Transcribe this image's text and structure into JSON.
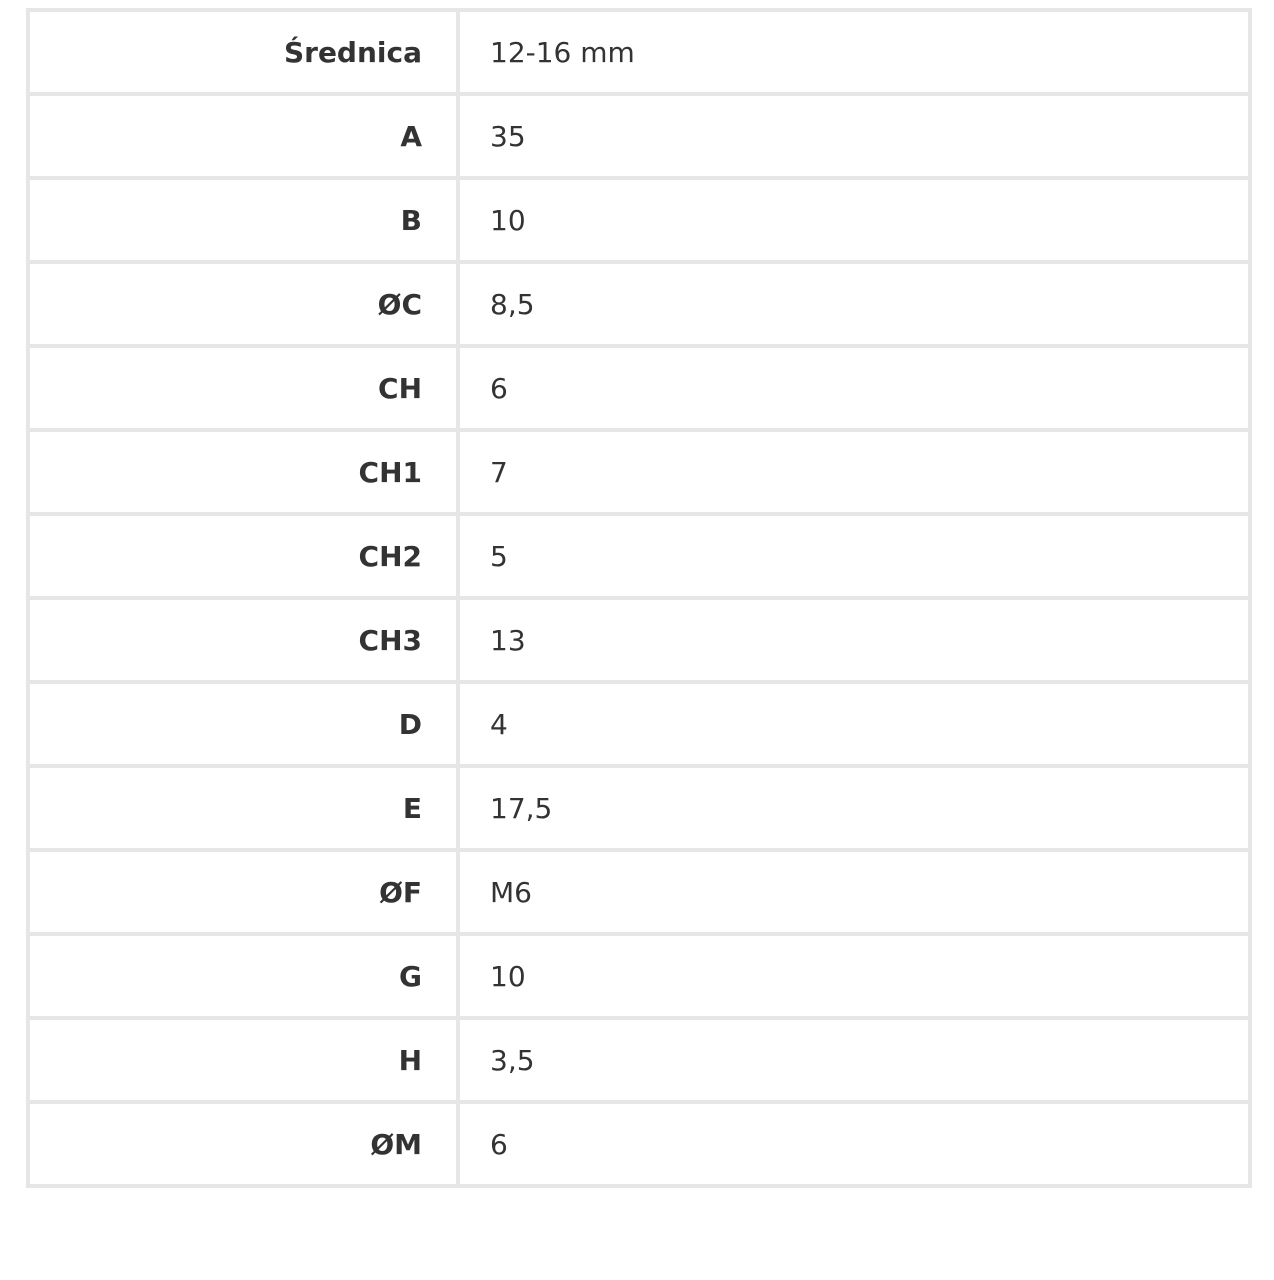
{
  "table": {
    "rows": [
      {
        "label": "Średnica",
        "value": "12-16  mm"
      },
      {
        "label": "A",
        "value": "35"
      },
      {
        "label": "B",
        "value": "10"
      },
      {
        "label": "ØC",
        "value": "8,5"
      },
      {
        "label": "CH",
        "value": "6"
      },
      {
        "label": "CH1",
        "value": "7"
      },
      {
        "label": "CH2",
        "value": "5"
      },
      {
        "label": "CH3",
        "value": "13"
      },
      {
        "label": "D",
        "value": "4"
      },
      {
        "label": "E",
        "value": "17,5"
      },
      {
        "label": "ØF",
        "value": "M6"
      },
      {
        "label": "G",
        "value": "10"
      },
      {
        "label": "H",
        "value": "3,5"
      },
      {
        "label": "ØM",
        "value": "6"
      }
    ]
  }
}
